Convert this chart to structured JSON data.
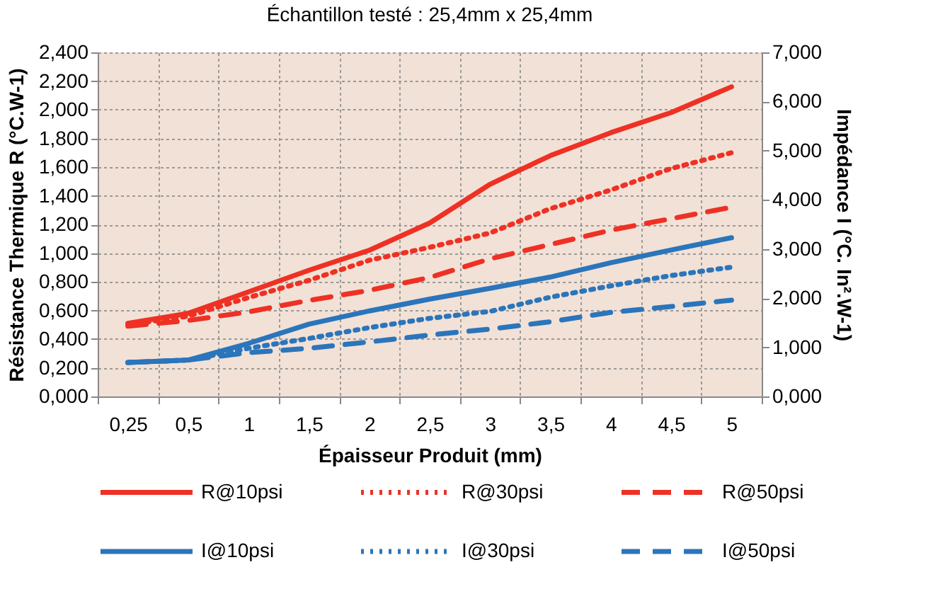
{
  "chart_data": {
    "type": "line",
    "title": "Échantillon testé : 25,4mm x 25,4mm",
    "xlabel": "Épaisseur Produit (mm)",
    "ylabel": "Résistance Thermique R (°C.W-1)",
    "y2label": "Impédance I (°C. In².W-1)",
    "categories": [
      "0,25",
      "0,5",
      "1",
      "1,5",
      "2",
      "2,5",
      "3",
      "3,5",
      "4",
      "4,5",
      "5"
    ],
    "ylim": [
      0,
      2.4
    ],
    "yticks": [
      {
        "value": 0,
        "label": "0,000"
      },
      {
        "value": 0.2,
        "label": "0,200"
      },
      {
        "value": 0.4,
        "label": "0,400"
      },
      {
        "value": 0.6,
        "label": "0,600"
      },
      {
        "value": 0.8,
        "label": "0,800"
      },
      {
        "value": 1,
        "label": "1,000"
      },
      {
        "value": 1.2,
        "label": "1,200"
      },
      {
        "value": 1.4,
        "label": "1,400"
      },
      {
        "value": 1.6,
        "label": "1,600"
      },
      {
        "value": 1.8,
        "label": "1,800"
      },
      {
        "value": 2,
        "label": "2,000"
      },
      {
        "value": 2.2,
        "label": "2,200"
      },
      {
        "value": 2.4,
        "label": "2,400"
      }
    ],
    "y2lim": [
      0,
      7
    ],
    "y2ticks": [
      {
        "value": 0,
        "label": "0,000"
      },
      {
        "value": 1,
        "label": "1,000"
      },
      {
        "value": 2,
        "label": "2,000"
      },
      {
        "value": 3,
        "label": "3,000"
      },
      {
        "value": 4,
        "label": "4,000"
      },
      {
        "value": 5,
        "label": "5,000"
      },
      {
        "value": 6,
        "label": "6,000"
      },
      {
        "value": 7,
        "label": "7,000"
      }
    ],
    "grid": true,
    "legend": "bottom",
    "marker": "none",
    "series": [
      {
        "name": "R@10psi",
        "color": "#ee3124",
        "line_style": "solid",
        "values": [
          0.51,
          0.58,
          0.73,
          0.88,
          1.02,
          1.21,
          1.48,
          1.68,
          1.84,
          1.98,
          2.16
        ]
      },
      {
        "name": "R@30psi",
        "color": "#ee3124",
        "line_style": "dotted",
        "values": [
          0.5,
          0.56,
          0.69,
          0.81,
          0.95,
          1.04,
          1.14,
          1.31,
          1.44,
          1.59,
          1.7
        ]
      },
      {
        "name": "R@50psi",
        "color": "#ee3124",
        "line_style": "dashed",
        "values": [
          0.49,
          0.53,
          0.59,
          0.67,
          0.74,
          0.83,
          0.96,
          1.06,
          1.16,
          1.24,
          1.32
        ]
      },
      {
        "name": "I@10psi",
        "color": "#2a75bb",
        "line_style": "solid",
        "axis": "y2",
        "values": [
          0.69,
          0.74,
          1.08,
          1.47,
          1.74,
          1.98,
          2.2,
          2.43,
          2.72,
          2.98,
          3.23
        ]
      },
      {
        "name": "I@30psi",
        "color": "#2a75bb",
        "line_style": "dotted",
        "axis": "y2",
        "values": [
          0.69,
          0.74,
          0.98,
          1.18,
          1.4,
          1.59,
          1.73,
          2.02,
          2.25,
          2.46,
          2.63
        ]
      },
      {
        "name": "I@50psi",
        "color": "#2a75bb",
        "line_style": "dashed",
        "axis": "y2",
        "values": [
          0.69,
          0.74,
          0.89,
          0.98,
          1.11,
          1.25,
          1.37,
          1.52,
          1.71,
          1.83,
          1.96
        ]
      }
    ]
  }
}
